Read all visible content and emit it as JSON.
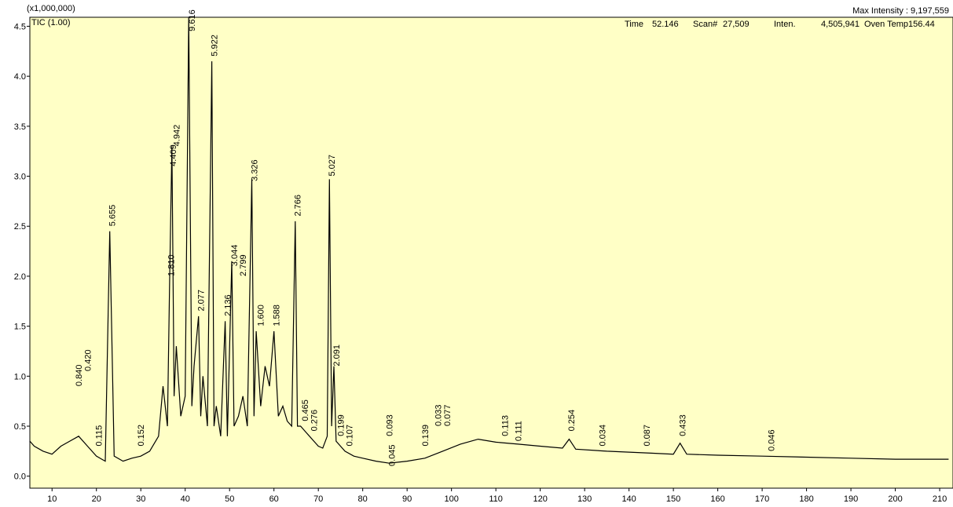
{
  "chart_data": {
    "type": "line",
    "scale_note": "(x1,000,000)",
    "trace_label": "TIC (1.00)",
    "max_intensity": "Max Intensity : 9,197,559",
    "status": [
      "Time",
      "52.146",
      "Scan#",
      "27,509",
      "Inten.",
      "4,505,941",
      "Oven Temp156.44"
    ],
    "xlim": [
      5,
      213
    ],
    "ylim": [
      -0.12,
      4.59
    ],
    "xticks": [
      10,
      20,
      30,
      40,
      50,
      60,
      70,
      80,
      90,
      100,
      110,
      120,
      130,
      140,
      150,
      160,
      170,
      180,
      190,
      200,
      210
    ],
    "yticks": [
      {
        "value": 0,
        "label": "0.0"
      },
      {
        "value": 0.5,
        "label": "0.5"
      },
      {
        "value": 1,
        "label": "1.0"
      },
      {
        "value": 1.5,
        "label": "1.5"
      },
      {
        "value": 2,
        "label": "2.0"
      },
      {
        "value": 2.5,
        "label": "2.5"
      },
      {
        "value": 3,
        "label": "3.0"
      },
      {
        "value": 3.5,
        "label": "3.5"
      },
      {
        "value": 4,
        "label": "4.0"
      },
      {
        "value": 4.5,
        "label": "4.5"
      }
    ],
    "x": [
      5,
      6,
      8,
      10,
      12,
      14,
      16,
      18,
      20,
      22,
      23,
      24,
      26,
      28,
      30,
      32,
      34,
      35,
      36,
      36.5,
      37,
      37.5,
      38,
      39,
      40,
      40.8,
      41.5,
      42,
      43,
      43.5,
      44,
      45,
      46,
      46.5,
      47,
      48,
      49,
      49.5,
      50.5,
      51,
      52,
      53,
      54,
      55,
      55.5,
      56,
      57,
      58,
      59,
      60,
      61,
      62,
      63,
      64,
      64.8,
      65.3,
      66,
      67,
      68,
      69,
      70,
      71,
      72,
      72.5,
      73,
      73.5,
      74,
      76,
      78,
      80,
      83,
      86,
      90,
      94,
      98,
      102,
      106,
      110,
      115,
      120,
      125,
      126.5,
      128,
      135,
      140,
      145,
      150,
      151.5,
      153,
      160,
      170,
      180,
      190,
      200,
      212
    ],
    "series": [
      {
        "name": "TIC",
        "color": "#000000",
        "values": [
          0.35,
          0.3,
          0.25,
          0.22,
          0.3,
          0.35,
          0.4,
          0.3,
          0.2,
          0.15,
          2.45,
          0.2,
          0.15,
          0.18,
          0.2,
          0.25,
          0.4,
          0.9,
          0.5,
          1.95,
          3.3,
          0.8,
          1.3,
          0.6,
          0.8,
          4.59,
          0.7,
          1.1,
          1.6,
          0.6,
          1.0,
          0.5,
          4.15,
          0.5,
          0.7,
          0.4,
          1.55,
          0.4,
          2.15,
          0.5,
          0.6,
          0.8,
          0.5,
          2.97,
          0.6,
          1.45,
          0.7,
          1.1,
          0.9,
          1.45,
          0.6,
          0.7,
          0.55,
          0.5,
          2.55,
          0.5,
          0.5,
          0.45,
          0.4,
          0.35,
          0.3,
          0.28,
          0.4,
          2.97,
          0.5,
          1.1,
          0.35,
          0.25,
          0.2,
          0.18,
          0.15,
          0.13,
          0.15,
          0.18,
          0.25,
          0.32,
          0.37,
          0.34,
          0.32,
          0.3,
          0.28,
          0.37,
          0.27,
          0.25,
          0.24,
          0.23,
          0.22,
          0.33,
          0.22,
          0.21,
          0.2,
          0.19,
          0.18,
          0.17,
          0.17
        ]
      }
    ],
    "annotations": [
      {
        "text": "0.840",
        "x": 16,
        "y": 0.9
      },
      {
        "text": "0.420",
        "x": 18,
        "y": 1.05
      },
      {
        "text": "0.115",
        "x": 20.5,
        "y": 0.3
      },
      {
        "text": "5.655",
        "x": 23.5,
        "y": 2.5
      },
      {
        "text": "0.152",
        "x": 30,
        "y": 0.3
      },
      {
        "text": "1.810",
        "x": 36.8,
        "y": 2.0
      },
      {
        "text": "4.409",
        "x": 37.2,
        "y": 3.1
      },
      {
        "text": "4.942",
        "x": 38,
        "y": 3.3
      },
      {
        "text": "9.616",
        "x": 41.5,
        "y": 4.45
      },
      {
        "text": "2.077",
        "x": 43.5,
        "y": 1.65
      },
      {
        "text": "5.922",
        "x": 46.5,
        "y": 4.2
      },
      {
        "text": "2.136",
        "x": 49.5,
        "y": 1.6
      },
      {
        "text": "3.044",
        "x": 51,
        "y": 2.1
      },
      {
        "text": "2.799",
        "x": 53,
        "y": 2.0
      },
      {
        "text": "3.326",
        "x": 55.5,
        "y": 2.95
      },
      {
        "text": "1.600",
        "x": 57,
        "y": 1.5
      },
      {
        "text": "1.588",
        "x": 60.5,
        "y": 1.5
      },
      {
        "text": "2.766",
        "x": 65.3,
        "y": 2.6
      },
      {
        "text": "0.465",
        "x": 67,
        "y": 0.55
      },
      {
        "text": "0.276",
        "x": 69,
        "y": 0.45
      },
      {
        "text": "5.027",
        "x": 73,
        "y": 3.0
      },
      {
        "text": "2.091",
        "x": 74,
        "y": 1.1
      },
      {
        "text": "0.199",
        "x": 75,
        "y": 0.4
      },
      {
        "text": "0.107",
        "x": 77,
        "y": 0.3
      },
      {
        "text": "0.093",
        "x": 86,
        "y": 0.4
      },
      {
        "text": "0.045",
        "x": 86.5,
        "y": 0.1
      },
      {
        "text": "0.139",
        "x": 94,
        "y": 0.3
      },
      {
        "text": "0.033",
        "x": 97,
        "y": 0.5
      },
      {
        "text": "0.077",
        "x": 99,
        "y": 0.5
      },
      {
        "text": "0.113",
        "x": 112,
        "y": 0.4
      },
      {
        "text": "0.111",
        "x": 115,
        "y": 0.35
      },
      {
        "text": "0.254",
        "x": 127,
        "y": 0.45
      },
      {
        "text": "0.034",
        "x": 134,
        "y": 0.3
      },
      {
        "text": "0.087",
        "x": 144,
        "y": 0.3
      },
      {
        "text": "0.433",
        "x": 152,
        "y": 0.4
      },
      {
        "text": "0.046",
        "x": 172,
        "y": 0.25
      }
    ]
  }
}
